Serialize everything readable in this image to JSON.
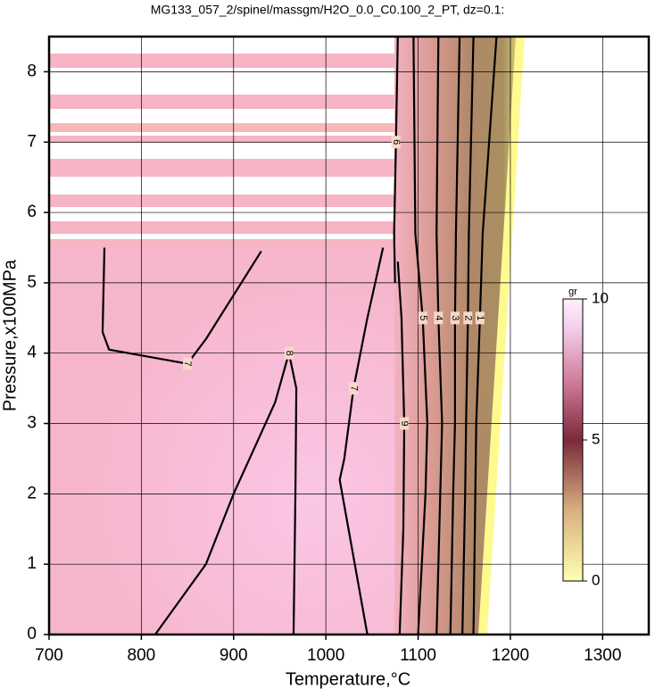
{
  "chart_data": {
    "type": "contour",
    "title": "MG133_057_2/spinel/massgm/H2O_0.0_C0.100_2_PT, dz=0.1:",
    "x_label": "Temperature,°C",
    "y_label": "Pressure,x100MPa",
    "xlim": [
      700,
      1350
    ],
    "ylim": [
      0,
      8.5
    ],
    "xticks": [
      700,
      800,
      900,
      1000,
      1100,
      1200,
      1300
    ],
    "yticks": [
      0,
      1,
      2,
      3,
      4,
      5,
      6,
      7,
      8
    ],
    "grid": true,
    "line_color": "#000000",
    "contours": [
      {
        "level": 7,
        "x": [
          760,
          758,
          765,
          850,
          870,
          930
        ],
        "y": [
          5.5,
          4.3,
          4.05,
          3.85,
          4.2,
          5.45
        ]
      },
      {
        "level": 8,
        "x": [
          815,
          870,
          900,
          945,
          960,
          968,
          967,
          965
        ],
        "y": [
          0,
          1.0,
          2.0,
          3.3,
          4.0,
          3.5,
          2.0,
          0
        ]
      },
      {
        "level": 7,
        "x": [
          1045,
          1015,
          1020,
          1030,
          1045,
          1062
        ],
        "y": [
          0,
          2.2,
          2.5,
          3.5,
          4.5,
          5.5
        ]
      },
      {
        "level": 6,
        "x": [
          1075,
          1074,
          1076,
          1078
        ],
        "y": [
          5.0,
          5.7,
          7.0,
          8.5
        ]
      },
      {
        "level": 9,
        "x": [
          1080,
          1084,
          1085,
          1082,
          1078
        ],
        "y": [
          0,
          1.5,
          3.0,
          4.5,
          5.3
        ]
      },
      {
        "level": 5,
        "x": [
          1100,
          1108,
          1110,
          1105,
          1097,
          1095
        ],
        "y": [
          0,
          2.0,
          3.0,
          4.5,
          5.7,
          8.5
        ]
      },
      {
        "level": 4,
        "x": [
          1120,
          1124,
          1126,
          1122,
          1120,
          1122
        ],
        "y": [
          0,
          2.0,
          3.0,
          4.5,
          5.7,
          8.5
        ]
      },
      {
        "level": 3,
        "x": [
          1135,
          1138,
          1140,
          1140,
          1141,
          1145
        ],
        "y": [
          0,
          2.0,
          3.0,
          4.5,
          5.7,
          8.5
        ]
      },
      {
        "level": 2,
        "x": [
          1148,
          1151,
          1152,
          1154,
          1155,
          1160
        ],
        "y": [
          0,
          2.0,
          3.0,
          4.5,
          5.7,
          8.5
        ]
      },
      {
        "level": 1,
        "x": [
          1160,
          1162,
          1163,
          1167,
          1170,
          1185
        ],
        "y": [
          0,
          2.0,
          3.0,
          4.5,
          5.7,
          8.5
        ]
      }
    ],
    "colorbar": {
      "label": "gr",
      "lim": [
        0,
        10
      ],
      "ticks": [
        0,
        5,
        10
      ]
    }
  }
}
